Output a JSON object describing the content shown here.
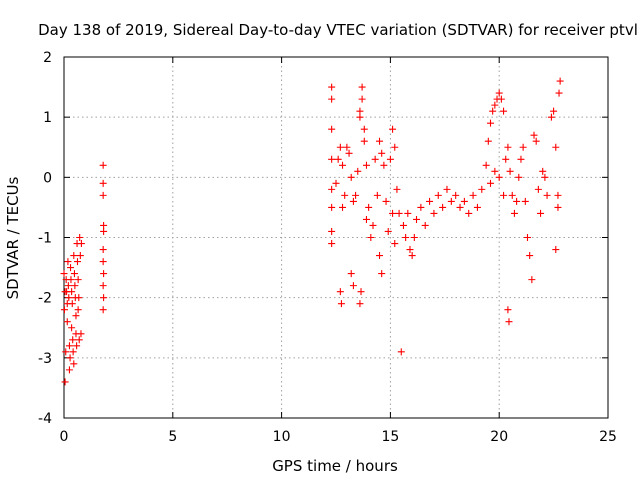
{
  "chart_data": {
    "type": "scatter",
    "title": "Day 138 of 2019, Sidereal Day-to-day VTEC variation (SDTVAR) for receiver ptvl",
    "xlabel": "GPS time / hours",
    "ylabel": "SDTVAR / TECUs",
    "xlim": [
      0,
      25
    ],
    "ylim": [
      -4,
      2
    ],
    "xticks": [
      0,
      5,
      10,
      15,
      20,
      25
    ],
    "yticks": [
      -4,
      -3,
      -2,
      -1,
      0,
      1,
      2
    ],
    "xtick_labels": [
      "0",
      "5",
      "10",
      "15",
      "20",
      "25"
    ],
    "ytick_labels": [
      "-4",
      "-3",
      "-2",
      "-1",
      "0",
      "1",
      "2"
    ],
    "grid": true,
    "marker": "plus",
    "color": "#ff0000",
    "series": [
      {
        "name": "SDTVAR",
        "points": [
          [
            0.0,
            -1.6
          ],
          [
            0.02,
            -2.2
          ],
          [
            0.05,
            -3.4
          ],
          [
            0.08,
            -2.9
          ],
          [
            0.1,
            -1.7
          ],
          [
            0.12,
            -1.9
          ],
          [
            0.15,
            -2.1
          ],
          [
            0.18,
            -1.4
          ],
          [
            0.2,
            -1.8
          ],
          [
            0.22,
            -2.0
          ],
          [
            0.25,
            -2.8
          ],
          [
            0.28,
            -3.0
          ],
          [
            0.3,
            -1.5
          ],
          [
            0.32,
            -1.7
          ],
          [
            0.35,
            -1.9
          ],
          [
            0.38,
            -2.1
          ],
          [
            0.4,
            -2.7
          ],
          [
            0.42,
            -2.9
          ],
          [
            0.45,
            -1.3
          ],
          [
            0.48,
            -1.6
          ],
          [
            0.5,
            -1.8
          ],
          [
            0.52,
            -2.0
          ],
          [
            0.55,
            -2.3
          ],
          [
            0.58,
            -2.8
          ],
          [
            0.6,
            -1.1
          ],
          [
            0.62,
            -1.4
          ],
          [
            0.65,
            -1.7
          ],
          [
            0.68,
            -2.0
          ],
          [
            0.7,
            -2.7
          ],
          [
            0.72,
            -1.0
          ],
          [
            0.75,
            -1.3
          ],
          [
            0.78,
            -2.6
          ],
          [
            0.8,
            -1.1
          ],
          [
            0.05,
            -1.9
          ],
          [
            0.15,
            -2.4
          ],
          [
            0.25,
            -3.2
          ],
          [
            0.35,
            -2.5
          ],
          [
            0.55,
            -2.6
          ],
          [
            0.65,
            -2.2
          ],
          [
            0.45,
            -3.1
          ],
          [
            1.8,
            0.2
          ],
          [
            1.8,
            -0.1
          ],
          [
            1.8,
            -0.3
          ],
          [
            1.82,
            -0.8
          ],
          [
            1.82,
            -0.9
          ],
          [
            1.8,
            -1.2
          ],
          [
            1.8,
            -1.4
          ],
          [
            1.82,
            -1.6
          ],
          [
            1.8,
            -1.8
          ],
          [
            1.82,
            -2.0
          ],
          [
            1.8,
            -2.2
          ],
          [
            12.3,
            1.5
          ],
          [
            12.3,
            1.3
          ],
          [
            12.3,
            0.8
          ],
          [
            12.3,
            0.3
          ],
          [
            12.3,
            -0.2
          ],
          [
            12.3,
            -0.5
          ],
          [
            12.3,
            -0.9
          ],
          [
            12.3,
            -1.1
          ],
          [
            12.5,
            -0.1
          ],
          [
            12.6,
            0.3
          ],
          [
            12.7,
            0.5
          ],
          [
            12.8,
            0.2
          ],
          [
            12.9,
            -0.3
          ],
          [
            12.8,
            -0.5
          ],
          [
            12.7,
            -1.9
          ],
          [
            12.75,
            -2.1
          ],
          [
            13.0,
            0.5
          ],
          [
            13.1,
            0.4
          ],
          [
            13.2,
            0.0
          ],
          [
            13.3,
            -0.4
          ],
          [
            13.2,
            -1.6
          ],
          [
            13.3,
            -1.8
          ],
          [
            13.4,
            -0.3
          ],
          [
            13.5,
            0.1
          ],
          [
            13.6,
            1.0
          ],
          [
            13.6,
            1.1
          ],
          [
            13.7,
            1.5
          ],
          [
            13.7,
            1.3
          ],
          [
            13.8,
            0.8
          ],
          [
            13.8,
            0.6
          ],
          [
            13.9,
            0.2
          ],
          [
            13.9,
            -0.7
          ],
          [
            13.6,
            -2.1
          ],
          [
            13.65,
            -1.9
          ],
          [
            14.0,
            -0.5
          ],
          [
            14.1,
            -1.0
          ],
          [
            14.2,
            -0.8
          ],
          [
            14.3,
            0.3
          ],
          [
            14.4,
            -0.3
          ],
          [
            14.5,
            -1.3
          ],
          [
            14.6,
            -1.6
          ],
          [
            14.5,
            0.6
          ],
          [
            14.6,
            0.4
          ],
          [
            14.7,
            0.2
          ],
          [
            14.8,
            -0.4
          ],
          [
            14.9,
            -0.9
          ],
          [
            15.0,
            0.3
          ],
          [
            15.1,
            0.8
          ],
          [
            15.2,
            0.5
          ],
          [
            15.1,
            -0.6
          ],
          [
            15.2,
            -1.1
          ],
          [
            15.3,
            -0.2
          ],
          [
            15.4,
            -0.6
          ],
          [
            15.5,
            -2.9
          ],
          [
            15.6,
            -0.8
          ],
          [
            15.7,
            -1.0
          ],
          [
            15.8,
            -0.6
          ],
          [
            15.9,
            -1.2
          ],
          [
            16.0,
            -1.3
          ],
          [
            16.1,
            -1.0
          ],
          [
            16.2,
            -0.7
          ],
          [
            16.4,
            -0.5
          ],
          [
            16.6,
            -0.8
          ],
          [
            16.8,
            -0.4
          ],
          [
            17.0,
            -0.6
          ],
          [
            17.2,
            -0.3
          ],
          [
            17.4,
            -0.5
          ],
          [
            17.6,
            -0.2
          ],
          [
            17.8,
            -0.4
          ],
          [
            18.0,
            -0.3
          ],
          [
            18.2,
            -0.5
          ],
          [
            18.4,
            -0.4
          ],
          [
            18.6,
            -0.6
          ],
          [
            18.8,
            -0.3
          ],
          [
            19.0,
            -0.5
          ],
          [
            19.2,
            -0.2
          ],
          [
            19.4,
            0.2
          ],
          [
            19.5,
            0.6
          ],
          [
            19.6,
            0.9
          ],
          [
            19.7,
            1.1
          ],
          [
            19.8,
            1.2
          ],
          [
            19.9,
            1.3
          ],
          [
            20.0,
            1.4
          ],
          [
            20.1,
            1.3
          ],
          [
            20.2,
            1.1
          ],
          [
            19.6,
            -0.1
          ],
          [
            19.8,
            0.1
          ],
          [
            20.0,
            0.0
          ],
          [
            20.2,
            -0.3
          ],
          [
            20.3,
            0.3
          ],
          [
            20.4,
            0.5
          ],
          [
            20.4,
            -2.2
          ],
          [
            20.45,
            -2.4
          ],
          [
            20.5,
            0.1
          ],
          [
            20.6,
            -0.3
          ],
          [
            20.7,
            -0.6
          ],
          [
            20.8,
            -0.4
          ],
          [
            20.9,
            0.0
          ],
          [
            21.0,
            0.3
          ],
          [
            21.1,
            0.5
          ],
          [
            21.2,
            -0.4
          ],
          [
            21.3,
            -1.0
          ],
          [
            21.4,
            -1.3
          ],
          [
            21.5,
            -1.7
          ],
          [
            21.6,
            0.7
          ],
          [
            21.7,
            0.6
          ],
          [
            21.8,
            -0.2
          ],
          [
            21.9,
            -0.6
          ],
          [
            22.0,
            0.1
          ],
          [
            22.1,
            0.0
          ],
          [
            22.2,
            -0.3
          ],
          [
            22.4,
            1.0
          ],
          [
            22.5,
            1.1
          ],
          [
            22.6,
            0.5
          ],
          [
            22.7,
            -0.5
          ],
          [
            22.8,
            1.6
          ],
          [
            22.75,
            1.4
          ],
          [
            22.6,
            -1.2
          ],
          [
            22.7,
            -0.3
          ]
        ]
      }
    ]
  }
}
